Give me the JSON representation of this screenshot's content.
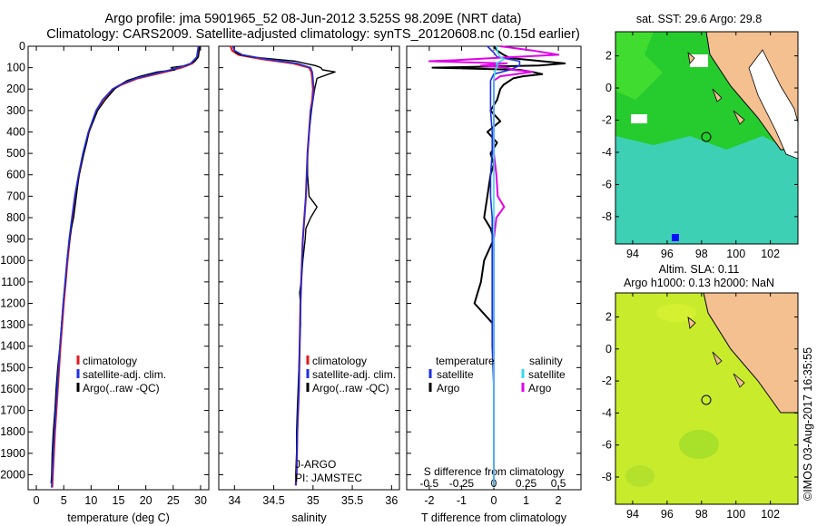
{
  "title": {
    "line1": "Argo profile: jma 5901965_52 08-Jun-2012 3.525S 98.209E (NRT data)",
    "line2": "Climatology: CARS2009. Satellite-adjusted climatology: synTS_20120608.nc (0.15d earlier)"
  },
  "colors": {
    "climatology": "#e41a1c",
    "satellite": "#1f2fe0",
    "argo": "#000000",
    "salinity_sat": "#36d8ec",
    "salinity_argo": "#e000e8",
    "land": "#f5c090",
    "map2_fill": "#c8ec2c",
    "map1_green": "#22cc22",
    "map1_cyan": "#3cd0b0"
  },
  "depth_axis": {
    "ticks": [
      "0",
      "100",
      "200",
      "300",
      "400",
      "500",
      "600",
      "700",
      "800",
      "900",
      "1000",
      "1100",
      "1200",
      "1300",
      "1400",
      "1500",
      "1600",
      "1700",
      "1800",
      "1900",
      "2000"
    ],
    "range": [
      0,
      2070
    ]
  },
  "legend_profile": {
    "climatology": "climatology",
    "satellite": "satellite-adj. clim.",
    "argo": "Argo(..raw -QC)"
  },
  "legend_diff": {
    "temperature": "temperature",
    "salinity": "salinity",
    "satellite": "satellite",
    "argo": "Argo"
  },
  "annot": {
    "jargo": "J-ARGO",
    "pi": "PI: JAMSTEC"
  },
  "map1": {
    "title": "sat. SST: 29.6 Argo: 29.8",
    "xticks": [
      "94",
      "96",
      "98",
      "100",
      "102"
    ],
    "yticks": [
      "2",
      "0",
      "-2",
      "-4",
      "-6",
      "-8"
    ]
  },
  "map2": {
    "title1": "Altim. SLA: 0.11",
    "title2": "Argo h1000: 0.13 h2000: NaN",
    "xticks": [
      "94",
      "96",
      "98",
      "100",
      "102"
    ],
    "yticks": [
      "2",
      "0",
      "-2",
      "-4",
      "-6",
      "-8"
    ]
  },
  "footer": "©IMOS 03-Aug-2017 16:35:55",
  "chart_data": [
    {
      "type": "line",
      "name": "temperature profile",
      "xlabel": "temperature (deg C)",
      "ylabel": "depth",
      "xlim": [
        -1.5,
        31.5
      ],
      "ylim": [
        2070,
        0
      ],
      "xticks": [
        "0",
        "5",
        "10",
        "15",
        "20",
        "25",
        "30"
      ],
      "series": [
        {
          "name": "climatology",
          "depth": [
            0,
            50,
            80,
            100,
            120,
            150,
            180,
            200,
            250,
            300,
            400,
            500,
            600,
            700,
            800,
            900,
            1000,
            1200,
            1400,
            1600,
            1800,
            2000,
            2060
          ],
          "values": [
            29.8,
            29.5,
            28.5,
            26.5,
            23.5,
            18.5,
            15.5,
            14.0,
            12.2,
            11.0,
            9.6,
            8.6,
            7.8,
            7.1,
            6.6,
            6.1,
            5.7,
            5.0,
            4.4,
            3.9,
            3.4,
            3.0,
            2.9
          ]
        },
        {
          "name": "satellite-adj. clim.",
          "depth": [
            0,
            50,
            80,
            100,
            120,
            150,
            180,
            200,
            250,
            300,
            400,
            500,
            600,
            700,
            800,
            900,
            1000,
            1200,
            1400,
            1600,
            1800,
            2000,
            2060
          ],
          "values": [
            29.6,
            29.3,
            28.2,
            26.0,
            23.0,
            18.2,
            15.3,
            13.9,
            12.1,
            10.9,
            9.5,
            8.5,
            7.7,
            7.0,
            6.5,
            6.0,
            5.6,
            4.9,
            4.3,
            3.8,
            3.3,
            2.9,
            2.8
          ]
        },
        {
          "name": "Argo(..raw -QC)",
          "depth": [
            0,
            10,
            30,
            50,
            70,
            90,
            100,
            110,
            120,
            140,
            160,
            180,
            200,
            220,
            250,
            300,
            350,
            400,
            450,
            500,
            600,
            700,
            800,
            850,
            900,
            1000,
            1100,
            1200,
            1300,
            1400,
            1500,
            1600,
            1700,
            1800,
            1900,
            2000,
            2040
          ],
          "values": [
            29.8,
            29.8,
            29.7,
            29.6,
            29.0,
            27.4,
            24.6,
            25.3,
            22.1,
            19.0,
            16.6,
            15.3,
            14.3,
            13.6,
            12.6,
            11.2,
            10.4,
            9.6,
            9.2,
            8.7,
            7.8,
            7.3,
            6.8,
            6.4,
            6.1,
            5.6,
            5.3,
            4.9,
            4.6,
            4.3,
            3.9,
            3.6,
            3.4,
            3.1,
            2.9,
            2.8,
            2.7
          ]
        }
      ]
    },
    {
      "type": "line",
      "name": "salinity profile",
      "xlabel": "salinity",
      "ylabel": "depth",
      "xlim": [
        33.8,
        36.1
      ],
      "ylim": [
        2070,
        0
      ],
      "xticks": [
        "34",
        "34.5",
        "35",
        "35.5",
        "36"
      ],
      "series": [
        {
          "name": "climatology",
          "depth": [
            0,
            20,
            40,
            60,
            80,
            100,
            120,
            150,
            200,
            250,
            300,
            400,
            500,
            600,
            700,
            800,
            900,
            1000,
            1200,
            1400,
            1600,
            1800,
            2000,
            2050
          ],
          "values": [
            33.95,
            33.97,
            34.05,
            34.35,
            34.75,
            34.95,
            34.98,
            34.99,
            35.0,
            34.99,
            34.97,
            34.95,
            34.93,
            34.92,
            34.91,
            34.89,
            34.87,
            34.86,
            34.84,
            34.83,
            34.82,
            34.8,
            34.79,
            34.78
          ]
        },
        {
          "name": "satellite-adj. clim.",
          "depth": [
            0,
            20,
            40,
            60,
            80,
            100,
            120,
            150,
            200,
            250,
            300,
            400,
            500,
            600,
            700,
            800,
            900,
            1000,
            1200,
            1400,
            1600,
            1800,
            2000,
            2050
          ],
          "values": [
            33.98,
            34.0,
            34.1,
            34.4,
            34.8,
            34.97,
            34.99,
            35.0,
            35.01,
            35.0,
            34.97,
            34.95,
            34.93,
            34.92,
            34.91,
            34.89,
            34.87,
            34.86,
            34.84,
            34.83,
            34.82,
            34.8,
            34.79,
            34.78
          ]
        },
        {
          "name": "Argo(..raw -QC)",
          "depth": [
            0,
            10,
            20,
            30,
            40,
            50,
            60,
            70,
            80,
            90,
            100,
            110,
            120,
            130,
            150,
            200,
            250,
            300,
            400,
            500,
            600,
            700,
            750,
            800,
            850,
            900,
            1000,
            1100,
            1150,
            1200,
            1300,
            1400,
            1500,
            1600,
            1700,
            1800,
            1900,
            2000,
            2040
          ],
          "values": [
            33.98,
            33.99,
            34.0,
            34.02,
            34.08,
            34.22,
            34.5,
            34.78,
            34.9,
            35.03,
            35.1,
            35.12,
            35.28,
            35.2,
            35.05,
            35.02,
            35.0,
            34.98,
            34.95,
            34.93,
            34.93,
            34.95,
            35.05,
            34.97,
            34.91,
            34.9,
            34.87,
            34.85,
            34.83,
            34.84,
            34.84,
            34.83,
            34.82,
            34.81,
            34.8,
            34.79,
            34.79,
            34.78,
            34.78
          ]
        }
      ]
    },
    {
      "type": "line",
      "name": "difference from climatology",
      "xlabel": "T difference from climatology",
      "xlabel_top": "S difference from climatology",
      "xlim": [
        -2.7,
        2.7
      ],
      "ylim": [
        2070,
        0
      ],
      "xticks": [
        "-2",
        "-1",
        "0",
        "1",
        "2"
      ],
      "xticks_top": [
        "-0.5",
        "-0.25",
        "0",
        "0.25",
        "0.5"
      ],
      "series": [
        {
          "name": "temperature satellite",
          "depth": [
            0,
            30,
            50,
            70,
            90,
            110,
            130,
            160,
            200,
            300,
            400,
            500,
            600,
            700,
            800,
            1000,
            1200,
            1400,
            1600,
            1800,
            2000,
            2050
          ],
          "values": [
            -0.2,
            0.0,
            0.1,
            0.8,
            0.8,
            0.5,
            0.0,
            -0.1,
            -0.1,
            -0.1,
            -0.05,
            -0.05,
            -0.1,
            -0.1,
            -0.05,
            -0.05,
            -0.05,
            -0.05,
            0.0,
            0.0,
            0.0,
            0.0
          ]
        },
        {
          "name": "temperature Argo",
          "depth": [
            0,
            20,
            40,
            55,
            70,
            80,
            90,
            100,
            110,
            120,
            130,
            140,
            150,
            180,
            200,
            250,
            300,
            350,
            400,
            450,
            500,
            550,
            600,
            700,
            800,
            850,
            900,
            1000,
            1100,
            1150,
            1200,
            1300,
            1400,
            1600,
            1800,
            2000,
            2040
          ],
          "values": [
            0.0,
            0.1,
            0.3,
            0.5,
            1.5,
            2.2,
            1.4,
            -1.9,
            0.8,
            1.2,
            1.5,
            0.9,
            0.6,
            0.3,
            0.2,
            0.1,
            -0.1,
            0.2,
            -0.2,
            0.1,
            -0.1,
            0.0,
            -0.1,
            -0.2,
            -0.3,
            -0.1,
            0.0,
            -0.3,
            -0.4,
            -0.5,
            -0.6,
            0.0,
            0.0,
            0.0,
            0.0,
            0.0,
            0.0
          ]
        },
        {
          "name": "salinity satellite",
          "depth": [
            0,
            30,
            50,
            60,
            70,
            80,
            90,
            100,
            120,
            150,
            200,
            300,
            400,
            600,
            800,
            1000,
            1200,
            1400,
            1600,
            1800,
            2000,
            2050
          ],
          "values": [
            0.02,
            0.03,
            0.05,
            0.08,
            0.05,
            0.02,
            0.03,
            0.02,
            0.01,
            0.0,
            0.0,
            0.0,
            0.0,
            0.0,
            0.0,
            0.0,
            0.0,
            0.0,
            0.0,
            0.0,
            0.0,
            0.0
          ]
        },
        {
          "name": "salinity Argo",
          "depth": [
            0,
            20,
            40,
            55,
            65,
            70,
            80,
            90,
            100,
            110,
            120,
            140,
            160,
            200,
            300,
            400,
            500,
            600,
            700,
            750,
            800,
            900,
            1000,
            1200,
            1400,
            1600,
            1800,
            2000,
            2040
          ],
          "values": [
            0.05,
            0.3,
            0.5,
            0.0,
            -0.3,
            -0.5,
            0.1,
            -0.1,
            0.1,
            0.15,
            0.3,
            0.05,
            0.0,
            0.0,
            0.0,
            0.0,
            0.0,
            0.02,
            0.03,
            0.08,
            0.02,
            0.0,
            0.0,
            0.0,
            0.0,
            0.0,
            0.0,
            0.0,
            0.0
          ]
        }
      ]
    }
  ]
}
